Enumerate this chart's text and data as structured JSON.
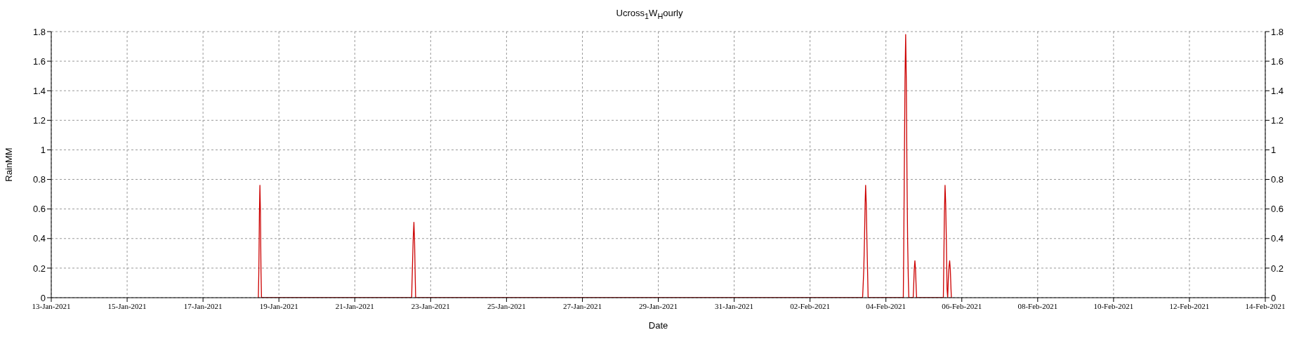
{
  "chart_data": {
    "type": "line",
    "title": "Ucross$_{1}$W$_{H}$ourly",
    "xlabel": "Date",
    "ylabel": "RainMM",
    "x": [
      "2021-01-18T11:00",
      "2021-01-18T11:20",
      "2021-01-18T11:40",
      "2021-01-18T12:00",
      "2021-01-18T12:20",
      "2021-01-18T12:40",
      "2021-01-18T13:00",
      "2021-01-22T12:00",
      "2021-01-22T12:10",
      "2021-01-22T12:35",
      "2021-01-22T13:00",
      "2021-01-22T13:25",
      "2021-01-22T13:50",
      "2021-01-22T14:15",
      "2021-01-22T14:30",
      "2021-02-03T09:15",
      "2021-02-03T09:30",
      "2021-02-03T10:00",
      "2021-02-03T10:25",
      "2021-02-03T10:50",
      "2021-02-03T11:10",
      "2021-02-03T11:35",
      "2021-02-03T12:00",
      "2021-02-03T12:30",
      "2021-02-03T12:45",
      "2021-02-04T11:00",
      "2021-02-04T11:15",
      "2021-02-04T11:40",
      "2021-02-04T12:05",
      "2021-02-04T12:30",
      "2021-02-04T12:55",
      "2021-02-04T13:20",
      "2021-02-04T13:45",
      "2021-02-04T14:10",
      "2021-02-04T14:30",
      "2021-02-04T17:15",
      "2021-02-04T17:30",
      "2021-02-04T17:55",
      "2021-02-04T18:20",
      "2021-02-04T18:45",
      "2021-02-04T19:10",
      "2021-02-04T19:25",
      "2021-02-05T12:20",
      "2021-02-05T12:35",
      "2021-02-05T13:00",
      "2021-02-05T13:25",
      "2021-02-05T13:50",
      "2021-02-05T14:15",
      "2021-02-05T14:40",
      "2021-02-05T15:05",
      "2021-02-05T15:30",
      "2021-02-05T15:55",
      "2021-02-05T16:20",
      "2021-02-05T16:45",
      "2021-02-05T17:10",
      "2021-02-05T17:25"
    ],
    "values": [
      0,
      0.19,
      0.57,
      0.76,
      0.57,
      0.19,
      0,
      0,
      0.08,
      0.25,
      0.41,
      0.51,
      0.38,
      0.13,
      0,
      0,
      0.06,
      0.19,
      0.38,
      0.63,
      0.76,
      0.63,
      0.38,
      0.13,
      0,
      0,
      0.29,
      0.89,
      1.48,
      1.78,
      1.46,
      0.82,
      0.38,
      0.13,
      0,
      0,
      0.06,
      0.19,
      0.25,
      0.19,
      0.06,
      0,
      0,
      0.19,
      0.57,
      0.76,
      0.63,
      0.38,
      0.06,
      0,
      0.13,
      0.21,
      0.25,
      0.19,
      0.06,
      0
    ],
    "color": "#cc0000",
    "xlim": [
      "2021-01-13",
      "2021-02-14"
    ],
    "xticks": [
      {
        "value": "2021-01-13",
        "label": "13-Jan-2021"
      },
      {
        "value": "2021-01-15",
        "label": "15-Jan-2021"
      },
      {
        "value": "2021-01-17",
        "label": "17-Jan-2021"
      },
      {
        "value": "2021-01-19",
        "label": "19-Jan-2021"
      },
      {
        "value": "2021-01-21",
        "label": "21-Jan-2021"
      },
      {
        "value": "2021-01-23",
        "label": "23-Jan-2021"
      },
      {
        "value": "2021-01-25",
        "label": "25-Jan-2021"
      },
      {
        "value": "2021-01-27",
        "label": "27-Jan-2021"
      },
      {
        "value": "2021-01-29",
        "label": "29-Jan-2021"
      },
      {
        "value": "2021-01-31",
        "label": "31-Jan-2021"
      },
      {
        "value": "2021-02-02",
        "label": "02-Feb-2021"
      },
      {
        "value": "2021-02-04",
        "label": "04-Feb-2021"
      },
      {
        "value": "2021-02-06",
        "label": "06-Feb-2021"
      },
      {
        "value": "2021-02-08",
        "label": "08-Feb-2021"
      },
      {
        "value": "2021-02-10",
        "label": "10-Feb-2021"
      },
      {
        "value": "2021-02-12",
        "label": "12-Feb-2021"
      },
      {
        "value": "2021-02-14",
        "label": "14-Feb-2021"
      }
    ],
    "ylim": [
      0,
      1.8
    ],
    "yticks": [
      0,
      0.2,
      0.4,
      0.6,
      0.8,
      1,
      1.2,
      1.4,
      1.6,
      1.8
    ],
    "y2lim": [
      0,
      1.8
    ],
    "y2ticks": [
      0,
      0.2,
      0.4,
      0.6,
      0.8,
      1,
      1.2,
      1.4,
      1.6,
      1.8
    ],
    "grid": true,
    "marker": "none",
    "line_style": "solid"
  }
}
